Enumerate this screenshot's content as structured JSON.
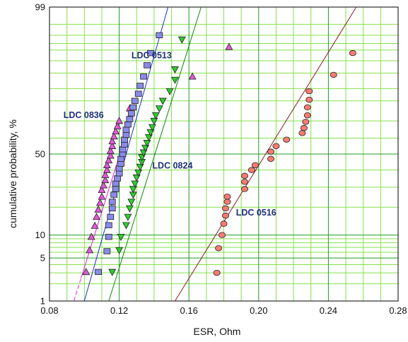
{
  "chart_data": {
    "type": "scatter",
    "title": "",
    "xlabel": "ESR, Ohm",
    "ylabel": "cumulative probability, %",
    "xlim": [
      0.08,
      0.28
    ],
    "ylim": [
      1,
      99
    ],
    "y_scale": "probability",
    "grid": true,
    "x_ticks": [
      "0.08",
      "0.12",
      "0.16",
      "0.20",
      "0.24",
      "0.28"
    ],
    "y_ticks": [
      "1",
      "5",
      "10",
      "50",
      "99"
    ],
    "series": [
      {
        "name": "LDC 0836",
        "marker": "triangle-up",
        "color": "#e05ad8",
        "x": [
          0.101,
          0.103,
          0.104,
          0.106,
          0.107,
          0.108,
          0.109,
          0.11,
          0.11,
          0.111,
          0.112,
          0.112,
          0.113,
          0.113,
          0.114,
          0.115,
          0.115,
          0.116,
          0.116,
          0.117,
          0.118,
          0.119,
          0.12,
          0.126,
          0.162,
          0.183
        ],
        "y": [
          3.1,
          6.4,
          9.5,
          12.8,
          16.0,
          19.0,
          22.0,
          25.0,
          28.5,
          31.0,
          34.0,
          37.0,
          40.0,
          43.0,
          46.0,
          49.0,
          52.0,
          55.0,
          58.0,
          61.0,
          64.0,
          67.0,
          70.0,
          76.5,
          89.0,
          95.5
        ]
      },
      {
        "name": "LDC 0513",
        "marker": "square",
        "color": "#8a8ae8",
        "x": [
          0.108,
          0.113,
          0.114,
          0.114,
          0.115,
          0.116,
          0.116,
          0.117,
          0.118,
          0.118,
          0.119,
          0.12,
          0.12,
          0.121,
          0.121,
          0.122,
          0.122,
          0.123,
          0.123,
          0.124,
          0.124,
          0.125,
          0.126,
          0.127,
          0.128,
          0.129,
          0.131,
          0.132,
          0.134,
          0.136,
          0.138,
          0.143
        ],
        "y": [
          3.1,
          6.2,
          9.5,
          13.0,
          16.0,
          19.5,
          22.5,
          26.0,
          29.0,
          32.0,
          35.0,
          38.0,
          41.0,
          44.0,
          47.0,
          50.0,
          53.0,
          56.0,
          59.0,
          62.0,
          65.0,
          68.0,
          71.0,
          74.0,
          77.0,
          80.0,
          83.0,
          86.0,
          89.0,
          92.0,
          94.5,
          97.0
        ]
      },
      {
        "name": "LDC 0824",
        "marker": "triangle-down",
        "color": "#2fcc2f",
        "x": [
          0.116,
          0.12,
          0.121,
          0.124,
          0.125,
          0.126,
          0.127,
          0.128,
          0.128,
          0.129,
          0.13,
          0.131,
          0.132,
          0.133,
          0.133,
          0.134,
          0.135,
          0.136,
          0.137,
          0.138,
          0.139,
          0.14,
          0.141,
          0.143,
          0.145,
          0.149,
          0.152,
          0.152,
          0.156
        ],
        "y": [
          3.1,
          6.4,
          9.5,
          13.0,
          16.0,
          19.5,
          22.5,
          26.0,
          29.0,
          32.0,
          35.5,
          38.5,
          42.0,
          45.0,
          48.0,
          51.0,
          54.0,
          57.0,
          60.5,
          63.5,
          66.5,
          70.0,
          73.0,
          76.5,
          80.0,
          84.0,
          88.0,
          91.0,
          96.5
        ]
      },
      {
        "name": "LDC 0516",
        "marker": "circle",
        "color": "#f77b74",
        "x": [
          0.176,
          0.177,
          0.179,
          0.18,
          0.181,
          0.181,
          0.182,
          0.182,
          0.192,
          0.192,
          0.192,
          0.196,
          0.198,
          0.207,
          0.207,
          0.21,
          0.216,
          0.225,
          0.226,
          0.227,
          0.228,
          0.228,
          0.229,
          0.229,
          0.243,
          0.254
        ],
        "y": [
          3.0,
          6.8,
          10.0,
          13.5,
          16.5,
          19.5,
          22.5,
          25.0,
          29.0,
          33.0,
          36.5,
          40.0,
          43.0,
          47.0,
          51.5,
          55.0,
          59.0,
          63.0,
          66.0,
          69.5,
          73.0,
          77.0,
          80.5,
          84.0,
          89.5,
          94.5
        ]
      }
    ],
    "fit_lines": [
      {
        "series": "LDC 0836",
        "color": "#e020e0",
        "dashed_segment": true,
        "x": [
          0.094,
          0.128
        ],
        "y": [
          1,
          75
        ]
      },
      {
        "series": "LDC 0513",
        "color": "#1a2fd6",
        "x": [
          0.1,
          0.148
        ],
        "y": [
          1,
          99
        ]
      },
      {
        "series": "LDC 0824",
        "color": "#0a8a0a",
        "x": [
          0.114,
          0.167
        ],
        "y": [
          1,
          99
        ]
      },
      {
        "series": "LDC 0516",
        "color": "#8b1a1a",
        "x": [
          0.152,
          0.256
        ],
        "y": [
          1,
          99
        ]
      }
    ],
    "annotations": [
      "LDC 0513",
      "LDC 0836",
      "LDC 0824",
      "LDC 0516"
    ]
  }
}
